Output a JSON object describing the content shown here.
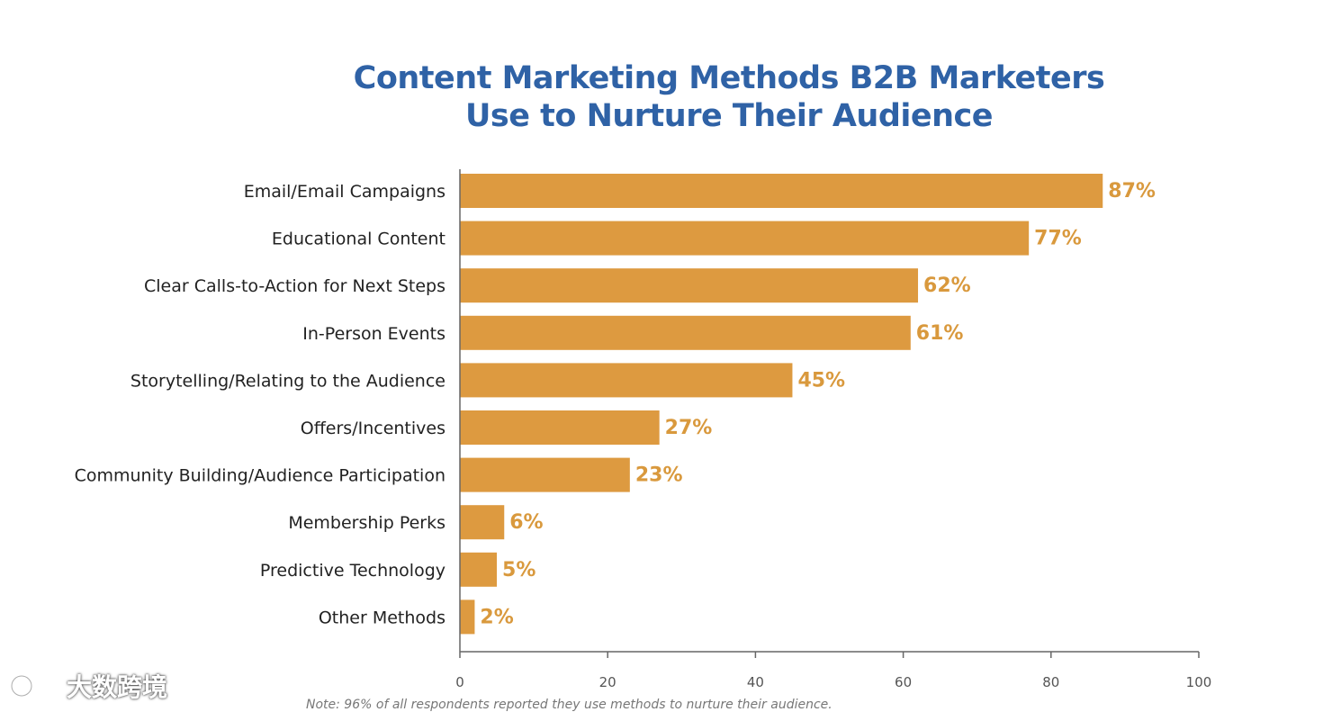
{
  "chart_data": {
    "type": "bar",
    "orientation": "horizontal",
    "title": "Content Marketing Methods B2B Marketers Use to Nurture Their Audience",
    "title_lines": [
      "Content Marketing Methods B2B Marketers",
      "Use to Nurture Their Audience"
    ],
    "categories": [
      "Email/Email Campaigns",
      "Educational Content",
      "Clear Calls-to-Action for Next Steps",
      "In-Person Events",
      "Storytelling/Relating to the Audience",
      "Offers/Incentives",
      "Community Building/Audience Participation",
      "Membership Perks",
      "Predictive Technology",
      "Other Methods"
    ],
    "values": [
      87,
      77,
      62,
      61,
      45,
      27,
      23,
      6,
      5,
      2
    ],
    "value_labels": [
      "87%",
      "77%",
      "62%",
      "61%",
      "45%",
      "27%",
      "23%",
      "6%",
      "5%",
      "2%"
    ],
    "xlim": [
      0,
      100
    ],
    "xticks": [
      0,
      20,
      40,
      60,
      80,
      100
    ],
    "xlabel": "",
    "ylabel": "",
    "grid": false,
    "colors": {
      "bar": "#dd9a40",
      "value_label": "#d9993d",
      "title": "#2f62a6"
    }
  },
  "note": "Note: 96% of all respondents reported they use methods to nurture their audience.",
  "watermark": {
    "text": "大数跨境",
    "icon": "logo-icon"
  }
}
